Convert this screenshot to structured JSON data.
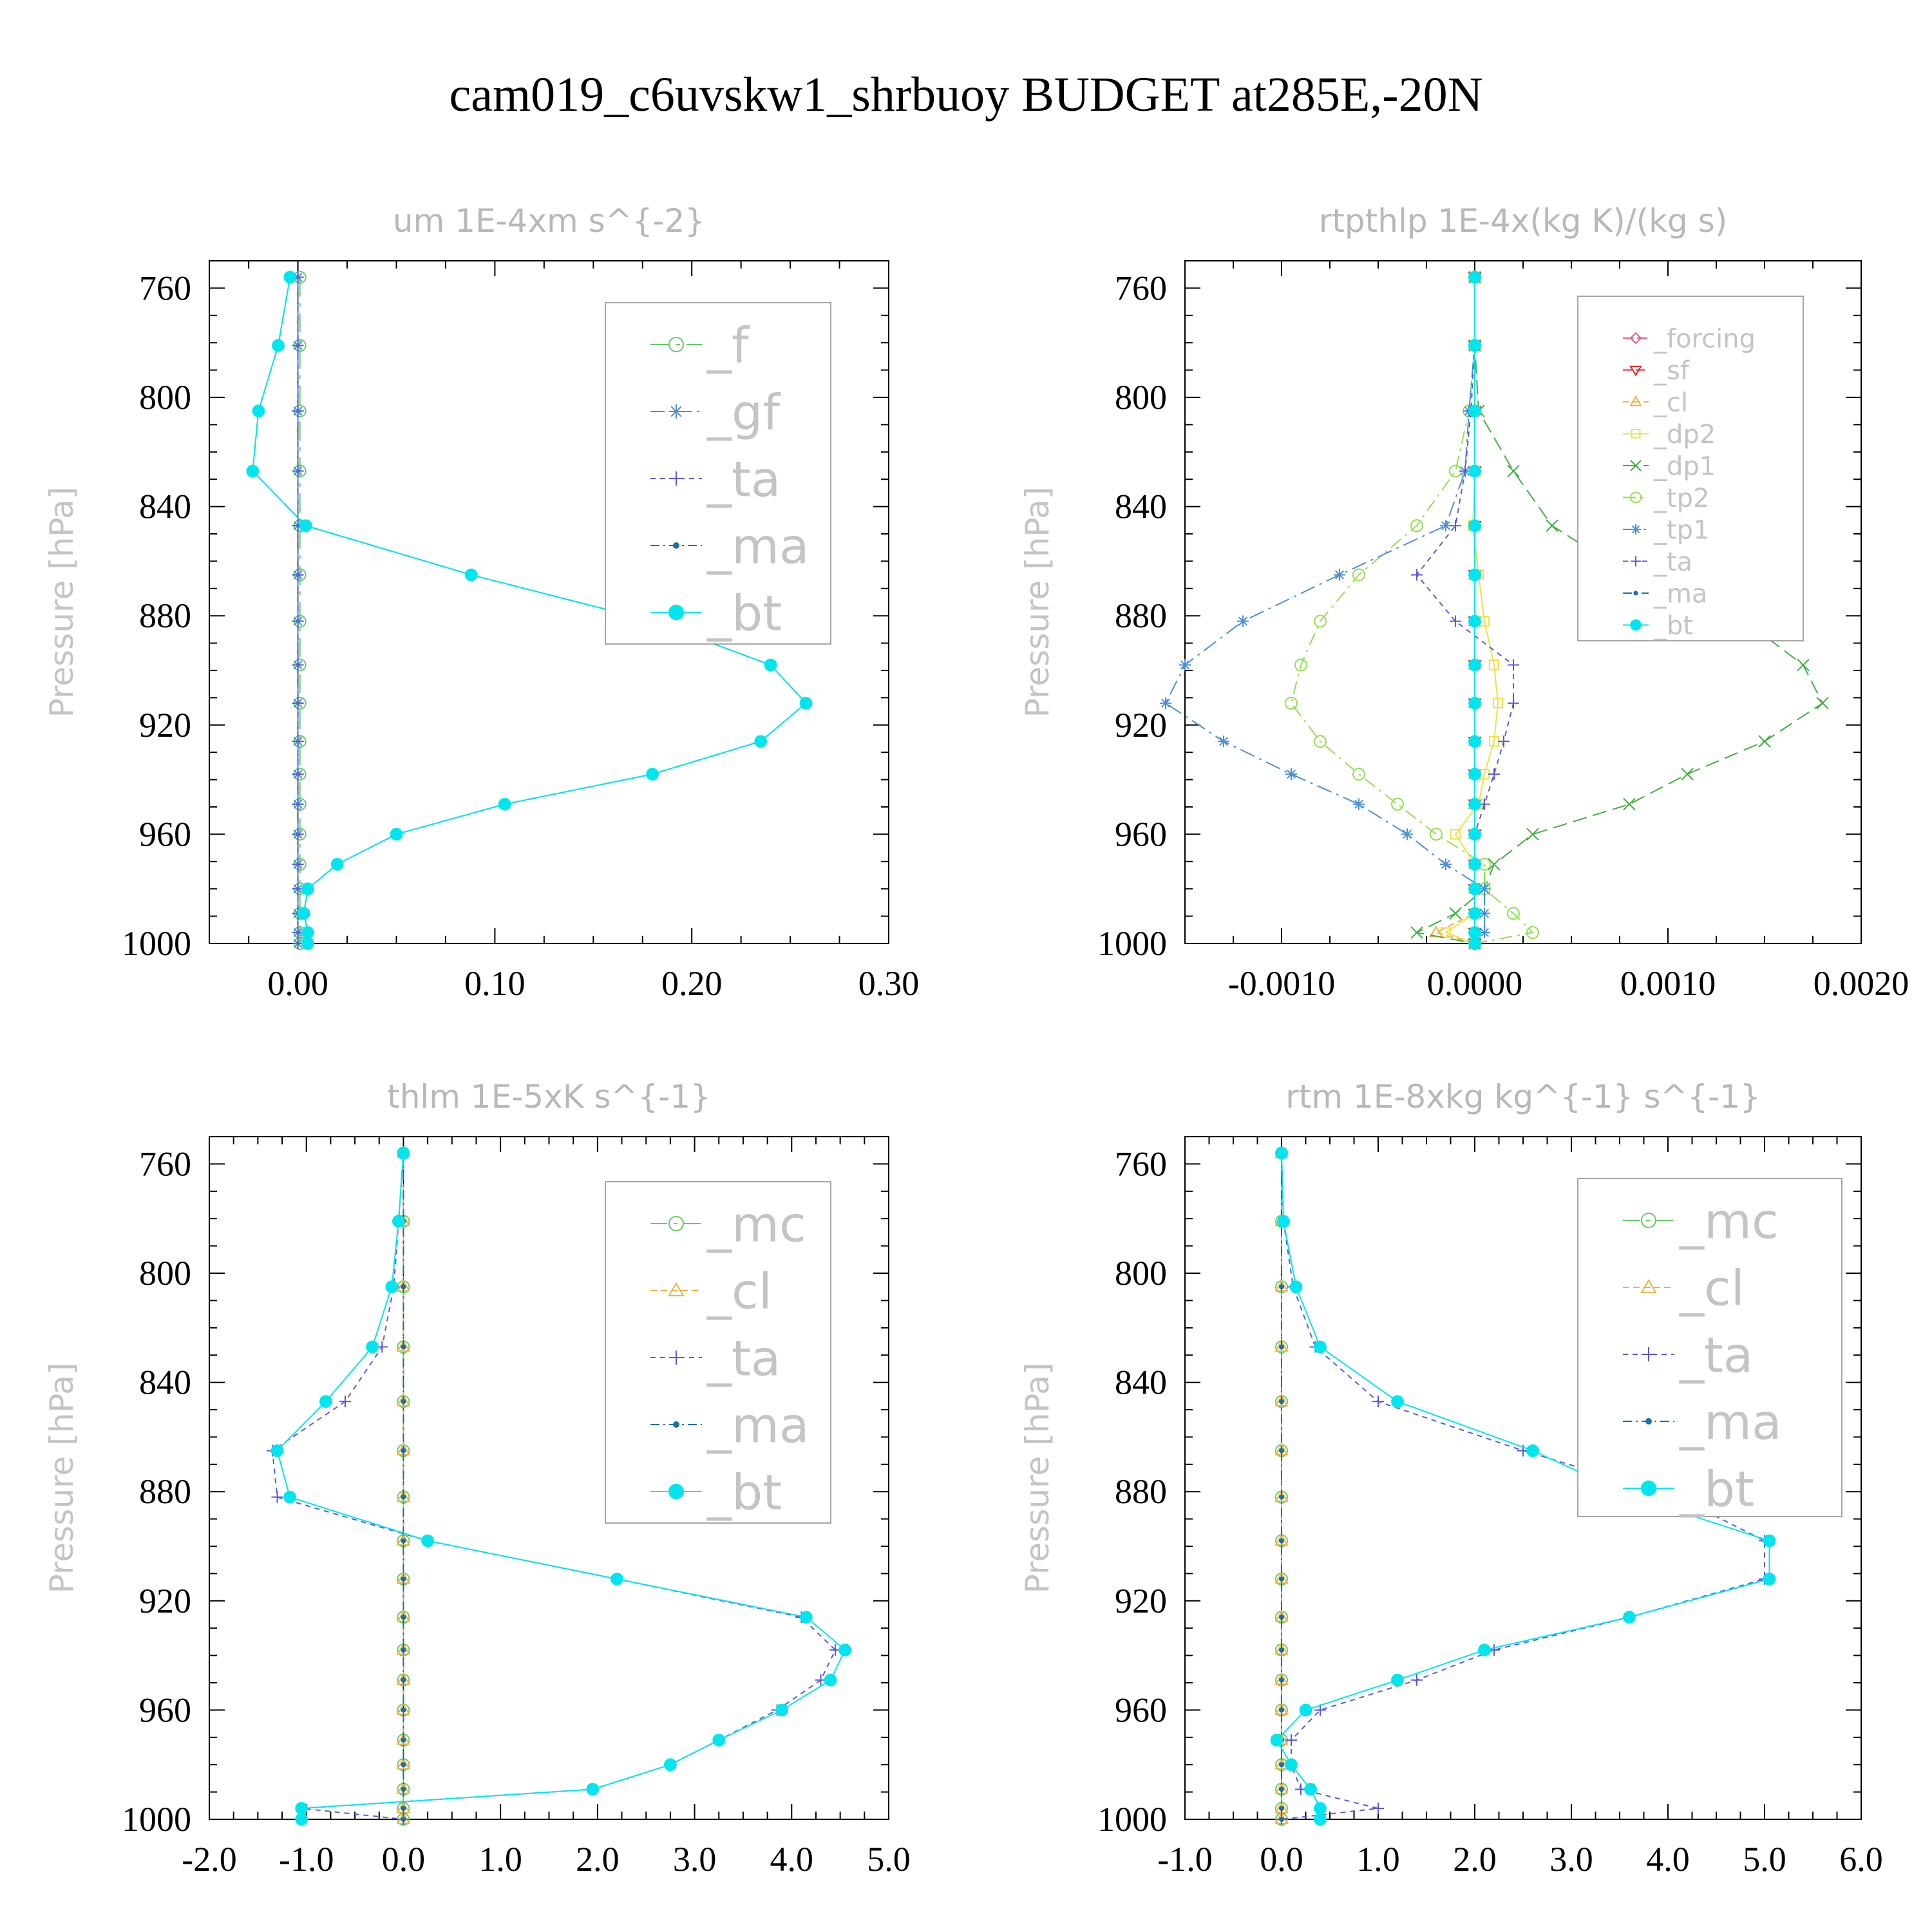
{
  "title": "cam019_c6uvskw1_shrbuoy  BUDGET at285E,-20N",
  "colors": {
    "_f": "#66cc66",
    "_gf": "#4a8fd8",
    "_ta": "#5a5ad8",
    "_ma": "#1a6fa8",
    "_bt": "#00e5ee",
    "_forcing": "#e06080",
    "_sf": "#e02020",
    "_cl": "#f0b040",
    "_dp2": "#f0e040",
    "_dp1": "#40b040",
    "_tp2": "#90e050",
    "_tp1": "#4a8fd8",
    "_mc": "#66cc66"
  },
  "chart_data": [
    {
      "type": "line",
      "title": "um  1E-4xm s^{-2}",
      "ylabel": "Pressure [hPa]",
      "xlim": [
        -0.045,
        0.3
      ],
      "ylim": [
        1000,
        750
      ],
      "xticks": [
        "0.00",
        "0.10",
        "0.20",
        "0.30"
      ],
      "xtick_values": [
        0,
        0.1,
        0.2,
        0.3
      ],
      "yticks": [
        "760",
        "800",
        "840",
        "880",
        "920",
        "960",
        "1000"
      ],
      "ytick_values": [
        760,
        800,
        840,
        880,
        920,
        960,
        1000
      ],
      "legend_position": "top-right",
      "y": [
        756,
        781,
        805,
        827,
        847,
        865,
        882,
        898,
        912,
        926,
        938,
        949,
        960,
        971,
        980,
        989,
        996,
        1000
      ],
      "series": [
        {
          "name": "_f",
          "values": [
            0.001,
            0.001,
            0.001,
            0.001,
            0.001,
            0.001,
            0.001,
            0.001,
            0.001,
            0.001,
            0.001,
            0.001,
            0.001,
            0.001,
            0.001,
            0.001,
            0.001,
            0.001
          ]
        },
        {
          "name": "_gf",
          "values": [
            0,
            0,
            0,
            0,
            0,
            0,
            0,
            0,
            0,
            0,
            0,
            0,
            0,
            0,
            0,
            0,
            0,
            0
          ]
        },
        {
          "name": "_ta",
          "values": [
            0,
            0,
            0,
            0,
            0,
            0,
            0,
            0,
            0,
            0,
            0,
            0,
            0,
            0,
            0,
            0,
            0,
            0
          ]
        },
        {
          "name": "_ma",
          "values": [
            -0.004,
            -0.01,
            -0.02,
            -0.023,
            0.004,
            0.088,
            0.18,
            0.24,
            0.258,
            0.235,
            0.18,
            0.105,
            0.05,
            0.02,
            0.005,
            0.003,
            0.005,
            0.005
          ]
        },
        {
          "name": "_bt",
          "values": [
            -0.004,
            -0.01,
            -0.02,
            -0.023,
            0.004,
            0.088,
            0.18,
            0.24,
            0.258,
            0.235,
            0.18,
            0.105,
            0.05,
            0.02,
            0.005,
            0.003,
            0.005,
            0.005
          ]
        }
      ]
    },
    {
      "type": "line",
      "title": "rtpthlp  1E-4x(kg K)/(kg s)",
      "ylabel": "Pressure [hPa]",
      "xlim": [
        -0.0015,
        0.002
      ],
      "ylim": [
        1000,
        750
      ],
      "xticks": [
        "-0.0010",
        "0.0000",
        "0.0010",
        "0.0020"
      ],
      "xtick_values": [
        -0.001,
        0,
        0.001,
        0.002
      ],
      "yticks": [
        "760",
        "800",
        "840",
        "880",
        "920",
        "960",
        "1000"
      ],
      "ytick_values": [
        760,
        800,
        840,
        880,
        920,
        960,
        1000
      ],
      "legend_position": "top-right",
      "y": [
        756,
        781,
        805,
        827,
        847,
        865,
        882,
        898,
        912,
        926,
        938,
        949,
        960,
        971,
        980,
        989,
        996,
        1000
      ],
      "series": [
        {
          "name": "_forcing",
          "values": [
            0,
            0,
            0,
            0,
            0,
            0,
            0,
            0,
            0,
            0,
            0,
            0,
            0,
            0,
            0,
            0,
            0,
            0
          ]
        },
        {
          "name": "_sf",
          "values": [
            0,
            0,
            0,
            0,
            0,
            0,
            0,
            0,
            0,
            0,
            0,
            0,
            0,
            0,
            0,
            0,
            0,
            0
          ]
        },
        {
          "name": "_cl",
          "values": [
            0,
            0,
            0,
            0,
            0,
            0,
            0,
            0,
            0,
            0,
            0,
            0,
            0,
            0,
            0,
            0,
            -0.0002,
            0
          ]
        },
        {
          "name": "_dp2",
          "values": [
            0,
            0,
            0,
            0,
            -1e-05,
            2e-05,
            5e-05,
            0.0001,
            0.00012,
            0.0001,
            5e-05,
            2e-05,
            -0.0001,
            0,
            0,
            0,
            -0.00015,
            0
          ]
        },
        {
          "name": "_dp1",
          "values": [
            0,
            0,
            2e-05,
            0.0002,
            0.0004,
            0.0008,
            0.0014,
            0.0017,
            0.0018,
            0.0015,
            0.0011,
            0.0008,
            0.0003,
            0.0001,
            5e-05,
            -0.0001,
            -0.0003,
            0
          ]
        },
        {
          "name": "_tp2",
          "values": [
            0,
            0,
            -3e-05,
            -0.0001,
            -0.0003,
            -0.0006,
            -0.0008,
            -0.0009,
            -0.00095,
            -0.0008,
            -0.0006,
            -0.0004,
            -0.0002,
            5e-05,
            5e-05,
            0.0002,
            0.0003,
            0
          ]
        },
        {
          "name": "_tp1",
          "values": [
            0,
            0,
            -3e-05,
            -5e-05,
            -0.00015,
            -0.0007,
            -0.0012,
            -0.0015,
            -0.0016,
            -0.0013,
            -0.00095,
            -0.0006,
            -0.00035,
            -0.00015,
            5e-05,
            5e-05,
            5e-05,
            0
          ]
        },
        {
          "name": "_ta",
          "values": [
            0,
            0,
            -2e-05,
            -5e-05,
            -0.0001,
            -0.0003,
            -0.0001,
            0.0002,
            0.0002,
            0.00015,
            0.0001,
            5e-05,
            0,
            0,
            0,
            0,
            0,
            0
          ]
        },
        {
          "name": "_ma",
          "values": [
            0,
            0,
            0,
            0,
            0,
            0,
            0,
            0,
            0,
            0,
            0,
            0,
            0,
            0,
            0,
            0,
            0,
            0
          ]
        },
        {
          "name": "_bt",
          "values": [
            0,
            0,
            0,
            0,
            0,
            0,
            0,
            0,
            0,
            0,
            0,
            0,
            0,
            0,
            0,
            0,
            0,
            0
          ]
        }
      ]
    },
    {
      "type": "line",
      "title": "thlm  1E-5xK s^{-1}",
      "ylabel": "Pressure [hPa]",
      "xlim": [
        -2.0,
        5.0
      ],
      "ylim": [
        1000,
        750
      ],
      "xticks": [
        "-2.0",
        "-1.0",
        "0.0",
        "1.0",
        "2.0",
        "3.0",
        "4.0",
        "5.0"
      ],
      "xtick_values": [
        -2,
        -1,
        0,
        1,
        2,
        3,
        4,
        5
      ],
      "yticks": [
        "760",
        "800",
        "840",
        "880",
        "920",
        "960",
        "1000"
      ],
      "ytick_values": [
        760,
        800,
        840,
        880,
        920,
        960,
        1000
      ],
      "legend_position": "top-right",
      "y": [
        756,
        781,
        805,
        827,
        847,
        865,
        882,
        898,
        912,
        926,
        938,
        949,
        960,
        971,
        980,
        989,
        996,
        1000
      ],
      "series": [
        {
          "name": "_mc",
          "values": [
            0,
            0,
            0,
            0,
            0,
            0,
            0,
            0,
            0,
            0,
            0,
            0,
            0,
            0,
            0,
            0,
            0,
            0
          ]
        },
        {
          "name": "_cl",
          "values": [
            0,
            0,
            0,
            0,
            0,
            0,
            0,
            0,
            0,
            0,
            0,
            0,
            0,
            0,
            0,
            0,
            0,
            0
          ]
        },
        {
          "name": "_ta",
          "values": [
            0,
            -0.05,
            -0.1,
            -0.22,
            -0.6,
            -1.35,
            -1.3,
            0.25,
            2.2,
            4.1,
            4.45,
            4.3,
            3.85,
            3.25,
            2.75,
            1.95,
            -1.05,
            0
          ]
        },
        {
          "name": "_ma",
          "values": [
            0,
            0,
            0,
            0,
            0,
            0,
            0,
            0,
            0,
            0,
            0,
            0,
            0,
            0,
            0,
            0,
            0,
            0
          ]
        },
        {
          "name": "_bt",
          "values": [
            0,
            -0.05,
            -0.12,
            -0.32,
            -0.8,
            -1.3,
            -1.17,
            0.25,
            2.2,
            4.15,
            4.55,
            4.4,
            3.9,
            3.25,
            2.75,
            1.95,
            -1.05,
            -1.05
          ]
        }
      ]
    },
    {
      "type": "line",
      "title": "rtm  1E-8xkg kg^{-1} s^{-1}",
      "ylabel": "Pressure [hPa]",
      "xlim": [
        -1.0,
        6.0
      ],
      "ylim": [
        1000,
        750
      ],
      "xticks": [
        "-1.0",
        "0.0",
        "1.0",
        "2.0",
        "3.0",
        "4.0",
        "5.0",
        "6.0"
      ],
      "xtick_values": [
        -1,
        0,
        1,
        2,
        3,
        4,
        5,
        6
      ],
      "yticks": [
        "760",
        "800",
        "840",
        "880",
        "920",
        "960",
        "1000"
      ],
      "ytick_values": [
        760,
        800,
        840,
        880,
        920,
        960,
        1000
      ],
      "legend_position": "top-right",
      "y": [
        756,
        781,
        805,
        827,
        847,
        865,
        882,
        898,
        912,
        926,
        938,
        949,
        960,
        971,
        980,
        989,
        996,
        1000
      ],
      "series": [
        {
          "name": "_mc",
          "values": [
            0,
            0,
            0,
            0,
            0,
            0,
            0,
            0,
            0,
            0,
            0,
            0,
            0,
            0,
            0,
            0,
            0,
            0
          ]
        },
        {
          "name": "_cl",
          "values": [
            0,
            0,
            0,
            0,
            0,
            0,
            0,
            0,
            0,
            0,
            0,
            0,
            0,
            0,
            0,
            0,
            0,
            0
          ]
        },
        {
          "name": "_ta",
          "values": [
            0,
            0.02,
            0.12,
            0.35,
            1.0,
            2.5,
            4.1,
            5.0,
            5.0,
            3.6,
            2.2,
            1.4,
            0.4,
            0.1,
            0.1,
            0.2,
            1.0,
            0
          ]
        },
        {
          "name": "_ma",
          "values": [
            0,
            0,
            0,
            0,
            0,
            0,
            0,
            0,
            0,
            0,
            0,
            0,
            0,
            0,
            0,
            0,
            0,
            0
          ]
        },
        {
          "name": "_bt",
          "values": [
            0,
            0.02,
            0.15,
            0.4,
            1.2,
            2.6,
            3.65,
            5.05,
            5.05,
            3.6,
            2.1,
            1.2,
            0.25,
            -0.05,
            0.1,
            0.3,
            0.4,
            0.4
          ]
        }
      ]
    }
  ]
}
